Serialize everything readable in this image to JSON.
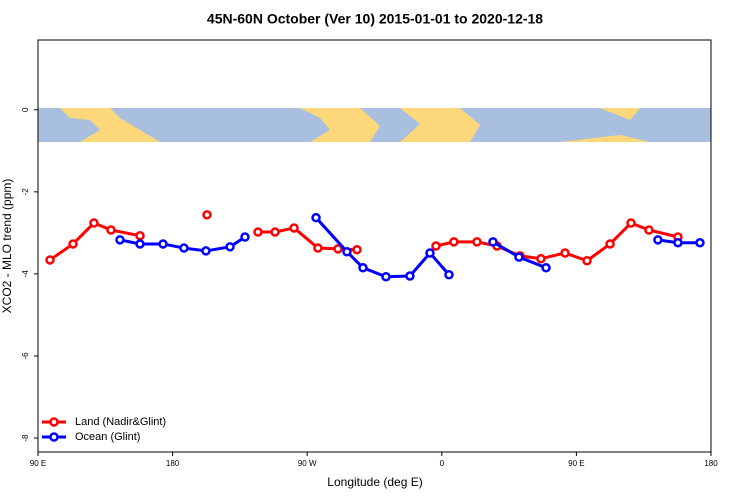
{
  "chart_data": {
    "type": "line",
    "title": "45N-60N October (Ver 10)   2015-01-01 to 2020-12-18",
    "x_label": "Longitude (deg E)",
    "y_label": "XCO2 - MLO trend (ppm)",
    "xlim": [
      90,
      540
    ],
    "ylim": [
      -8.34,
      1.7
    ],
    "xticks": [
      {
        "value": 90,
        "label": "90 E"
      },
      180,
      {
        "value": 270,
        "label": "90 W"
      },
      {
        "value": 360,
        "label": "0"
      },
      {
        "value": 450,
        "label": "90 E"
      },
      {
        "value": 540,
        "label": "180"
      }
    ],
    "yticks": [
      0,
      -2,
      -4,
      -6,
      -8
    ],
    "legend": "bottom-left",
    "series": [
      {
        "name": "Land (Nadir&Glint)",
        "color": "#ff0000",
        "x": [
          98,
          113.4,
          127.4,
          138.8,
          158.2,
          null,
          203,
          null,
          237.1,
          248.5,
          261.2,
          277.2,
          290.6,
          303.3,
          null,
          356.1,
          368.1,
          383.5,
          396.9,
          412.3,
          426.3,
          442.4,
          457.1,
          472.5,
          486.5,
          498.5,
          517.9
        ],
        "values": [
          -3.66,
          -3.27,
          -2.76,
          -2.93,
          -3.07,
          null,
          -2.56,
          null,
          -2.98,
          -2.98,
          -2.88,
          -3.37,
          -3.39,
          -3.41,
          null,
          -3.32,
          -3.22,
          -3.22,
          -3.32,
          -3.56,
          -3.63,
          -3.49,
          -3.68,
          -3.27,
          -2.76,
          -2.93,
          -3.1
        ]
      },
      {
        "name": "Ocean (Glint)",
        "color": "#0000ff",
        "x": [
          144.8,
          158.2,
          173.6,
          187.6,
          202.3,
          218.4,
          228.4,
          null,
          275.9,
          296.6,
          307.3,
          322.7,
          338.7,
          352.1,
          364.8,
          null,
          394.2,
          411.6,
          429.7,
          null,
          504.5,
          517.9,
          532.6
        ],
        "values": [
          -3.17,
          -3.27,
          -3.27,
          -3.37,
          -3.44,
          -3.34,
          -3.1,
          null,
          -2.63,
          -3.46,
          -3.85,
          -4.07,
          -4.05,
          -3.49,
          -4.02,
          null,
          -3.22,
          -3.59,
          -3.85,
          null,
          -3.17,
          -3.24,
          -3.24
        ]
      }
    ]
  }
}
